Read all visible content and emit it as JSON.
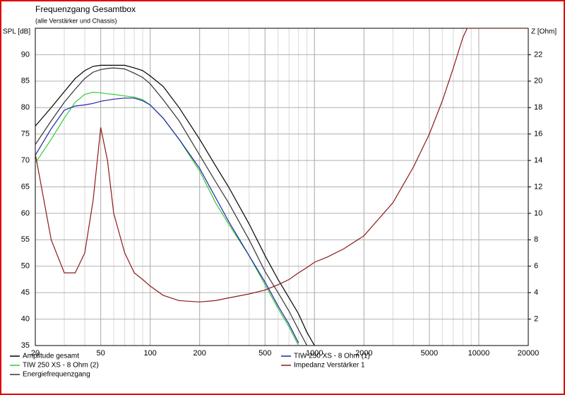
{
  "chart_data": {
    "type": "line",
    "title": "Frequenzgang Gesamtbox",
    "subtitle": "(alle Verstärker und Chassis)",
    "y_label": "SPL [dB]",
    "y2_label": "Z [Ohm]",
    "log_x": true,
    "grid": true,
    "xlim": [
      20,
      20000
    ],
    "xticks": [
      20,
      50,
      100,
      200,
      500,
      1000,
      2000,
      5000,
      10000,
      20000
    ],
    "ylim": [
      35,
      95
    ],
    "yticks": [
      35,
      40,
      45,
      50,
      55,
      60,
      65,
      70,
      75,
      80,
      85,
      90
    ],
    "y2lim": [
      0,
      24
    ],
    "y2ticks": [
      2,
      4,
      6,
      8,
      10,
      12,
      14,
      16,
      18,
      20,
      22
    ],
    "x": [
      20,
      25,
      30,
      35,
      40,
      45,
      50,
      55,
      60,
      70,
      80,
      90,
      100,
      120,
      150,
      200,
      250,
      300,
      400,
      500,
      600,
      700,
      800,
      900,
      1000,
      1200,
      1500,
      2000,
      3000,
      4000,
      5000,
      6000,
      7000,
      8000,
      8500,
      10000,
      20000
    ],
    "series": [
      {
        "name": "Amplitude gesamt",
        "color": "#000000",
        "values": [
          76.5,
          80,
          83,
          85.5,
          87,
          87.8,
          88,
          88,
          88,
          88,
          87.5,
          87,
          86,
          84,
          80,
          74,
          69,
          65,
          58,
          52,
          47.5,
          44,
          41,
          37.5,
          35,
          null,
          null,
          null,
          null,
          null,
          null,
          null,
          null,
          null,
          null,
          null,
          null
        ]
      },
      {
        "name": "TIW 250 XS - 8 Ohm (2)",
        "color": "#33cc33",
        "values": [
          69.5,
          74,
          78,
          81,
          82.5,
          82.9,
          82.8,
          82.6,
          82.5,
          82.2,
          82,
          81.5,
          80.5,
          78,
          74,
          68,
          62,
          58,
          52,
          46.5,
          42,
          38.5,
          35,
          null,
          null,
          null,
          null,
          null,
          null,
          null,
          null,
          null,
          null,
          null,
          null,
          null,
          null
        ]
      },
      {
        "name": "Energiefrequenzgang",
        "color": "#333333",
        "values": [
          73,
          77.5,
          81,
          83.5,
          85.5,
          86.7,
          87.2,
          87.4,
          87.5,
          87.3,
          86.5,
          85.7,
          84.5,
          81.5,
          77.5,
          71,
          66,
          62,
          55,
          49,
          45,
          41.5,
          38,
          35,
          null,
          null,
          null,
          null,
          null,
          null,
          null,
          null,
          null,
          null,
          null,
          null,
          null
        ]
      },
      {
        "name": "TIW 250 XS - 8 Ohm (1)",
        "color": "#2222aa",
        "values": [
          71,
          76,
          79.5,
          80.3,
          80.5,
          80.8,
          81.2,
          81.4,
          81.6,
          81.8,
          81.8,
          81.3,
          80.5,
          78,
          74,
          68.5,
          63,
          58.5,
          52,
          47,
          42.5,
          39,
          35.5,
          null,
          null,
          null,
          null,
          null,
          null,
          null,
          null,
          null,
          null,
          null,
          null,
          null,
          null
        ]
      },
      {
        "name": "Impedanz Verstärker 1",
        "color": "#8b1a1a",
        "axis": "y2",
        "values": [
          14.5,
          8,
          5.5,
          5.5,
          7,
          11,
          16.5,
          14,
          10,
          7,
          5.5,
          5,
          4.5,
          3.8,
          3.4,
          3.3,
          3.4,
          3.6,
          3.9,
          4.2,
          4.6,
          5,
          5.5,
          5.9,
          6.3,
          6.7,
          7.3,
          8.3,
          10.8,
          13.5,
          16,
          18.5,
          21,
          23.3,
          24,
          24,
          24
        ]
      }
    ]
  }
}
